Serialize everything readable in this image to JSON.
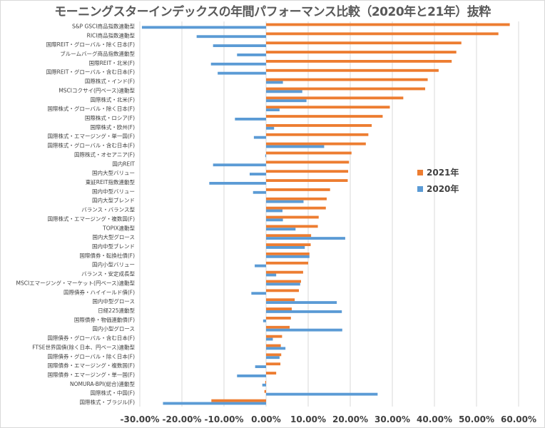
{
  "chart_data": {
    "type": "bar",
    "orientation": "horizontal",
    "title": "モーニングスターインデックスの年間パフォーマンス比較（2020年と21年）抜粋",
    "xlabel": "",
    "ylabel": "",
    "xlim": [
      -0.3,
      0.6
    ],
    "x_ticks": [
      "-30.00%",
      "-20.00%",
      "-10.00%",
      "0.00%",
      "10.00%",
      "20.00%",
      "30.00%",
      "40.00%",
      "50.00%",
      "60.00%"
    ],
    "x_tick_values": [
      -0.3,
      -0.2,
      -0.1,
      0.0,
      0.1,
      0.2,
      0.3,
      0.4,
      0.5,
      0.6
    ],
    "grid": "vertical",
    "legend_position": "right-middle",
    "categories": [
      "S&P GSCI商品指数連動型",
      "RICI商品指数連動型",
      "国際REIT・グローバル・除く日本(F)",
      "ブルームバーグ商品指数連動型",
      "国際REIT・北米(F)",
      "国際REIT・グローバル・含む日本(F)",
      "国際株式・インド(F)",
      "MSCIコクサイ(円ベース)連動型",
      "国際株式・北米(F)",
      "国際株式・グローバル・除く日本(F)",
      "国際株式・ロシア(F)",
      "国際株式・欧州(F)",
      "国際株式・エマージング・単一国(F)",
      "国際株式・グローバル・含む日本(F)",
      "国際株式・オセアニア(F)",
      "国内REIT",
      "国内大型バリュー",
      "東証REIT指数連動型",
      "国内中型バリュー",
      "国内大型ブレンド",
      "バランス・バランス型",
      "国際株式・エマージング・複数国(F)",
      "TOPIX連動型",
      "国内大型グロース",
      "国内中型ブレンド",
      "国際債券・転換社債(F)",
      "国内小型バリュー",
      "バランス・安定成長型",
      "MSCIエマージング・マーケット(円ベース)連動型",
      "国際債券・ハイイールド債(F)",
      "国内中型グロース",
      "日経225連動型",
      "国際債券・物価連動債(F)",
      "国内小型グロース",
      "国際債券・グローバル・含む日本(F)",
      "FTSE世界国債(除く日本、円ベース)連動型",
      "国際債券・グローバル・除く日本(F)",
      "国際債券・エマージング・複数国(F)",
      "国際債券・エマージング・単一国(F)",
      "NOMURA-BPI(総合)連動型",
      "国際株式・中国(F)",
      "国際株式・ブラジル(F)"
    ],
    "series": [
      {
        "name": "2021年",
        "color": "#ED7D31",
        "values": [
          0.579,
          0.552,
          0.464,
          0.452,
          0.441,
          0.41,
          0.384,
          0.378,
          0.326,
          0.294,
          0.277,
          0.251,
          0.243,
          0.237,
          0.203,
          0.197,
          0.195,
          0.194,
          0.152,
          0.144,
          0.142,
          0.125,
          0.123,
          0.107,
          0.106,
          0.103,
          0.1,
          0.088,
          0.083,
          0.078,
          0.068,
          0.061,
          0.059,
          0.056,
          0.038,
          0.035,
          0.036,
          0.034,
          0.024,
          -0.002,
          -0.004,
          -0.13
        ]
      },
      {
        "name": "2020年",
        "color": "#5B9BD5",
        "values": [
          -0.295,
          -0.165,
          -0.126,
          -0.069,
          -0.131,
          -0.115,
          0.04,
          0.086,
          0.096,
          0.032,
          -0.074,
          0.019,
          -0.029,
          0.138,
          -0.002,
          -0.126,
          -0.039,
          -0.135,
          -0.031,
          0.089,
          0.039,
          0.04,
          0.07,
          0.188,
          0.092,
          0.103,
          -0.027,
          0.024,
          0.081,
          -0.035,
          0.168,
          0.18,
          -0.007,
          0.181,
          0.016,
          0.046,
          0.032,
          -0.026,
          -0.069,
          -0.009,
          0.265,
          -0.245
        ]
      }
    ],
    "legend": [
      "2021年",
      "2020年"
    ]
  }
}
